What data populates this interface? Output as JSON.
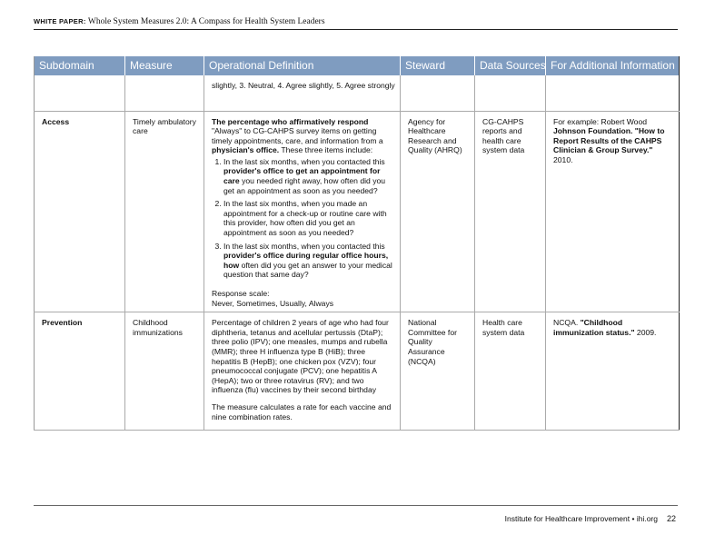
{
  "header": {
    "label": "WHITE PAPER:",
    "title": "Whole System Measures 2.0: A Compass for Health System Leaders"
  },
  "table": {
    "columns": [
      "Subdomain",
      "Measure",
      "Operational Definition",
      "Steward",
      "Data Sources",
      "For Additional Information"
    ],
    "row0": {
      "definition": "slightly, 3. Neutral, 4. Agree slightly, 5. Agree strongly"
    },
    "access": {
      "subdomain": "Access",
      "measure": "Timely ambulatory care",
      "intro_bold": "The percentage who affirmatively respond",
      "intro_rest": " \"Always\" to CG-CAHPS survey items on getting timely appointments, care, and information from a ",
      "intro_bold2": "physician's office.",
      "intro_end": " These three items include:",
      "items": [
        {
          "a": "In the last six months, when you contacted this ",
          "b": "provider's office to get an appointment for care",
          "c": " you needed right away, how often did you get an appointment as soon as you needed?"
        },
        {
          "a": "In the last six months, when you made an appointment for a check-up or routine care with this provider, how often did you get an appointment as soon as you needed?",
          "b": "",
          "c": ""
        },
        {
          "a": "In the last six months, when you contacted this ",
          "b": "provider's office during regular office hours, how",
          "c": " often did you get an answer to your medical question that same day?"
        }
      ],
      "scale_label": "Response scale:",
      "scale": "Never, Sometimes, Usually, Always",
      "steward": "Agency for Healthcare Research and Quality (AHRQ)",
      "sources": "CG-CAHPS reports and health care system data",
      "info_a": "For example: Robert Wood ",
      "info_b": "Johnson Foundation. \"How to Report Results of the CAHPS Clinician & Group Survey.\"",
      "info_c": " 2010."
    },
    "prevention": {
      "subdomain": "Prevention",
      "measure": "Childhood immunizations",
      "definition": "Percentage of children 2 years of age who had four diphtheria, tetanus and acellular pertussis (DtaP); three polio (IPV); one measles, mumps and rubella (MMR); three H influenza type B (HiB); three hepatitis B (HepB); one chicken pox (VZV); four pneumococcal conjugate (PCV); one hepatitis A (HepA); two or three rotavirus (RV); and two influenza (flu) vaccines by their second birthday",
      "definition2": "The measure calculates a rate for each vaccine and nine combination rates.",
      "steward": "National Committee for Quality Assurance (NCQA)",
      "sources": "Health care system data",
      "info_a": "NCQA. ",
      "info_b": "\"Childhood immunization status.\"",
      "info_c": " 2009."
    }
  },
  "footer": {
    "org": "Institute for Healthcare Improvement",
    "sep": "•",
    "site": "ihi.org",
    "page": "22"
  }
}
